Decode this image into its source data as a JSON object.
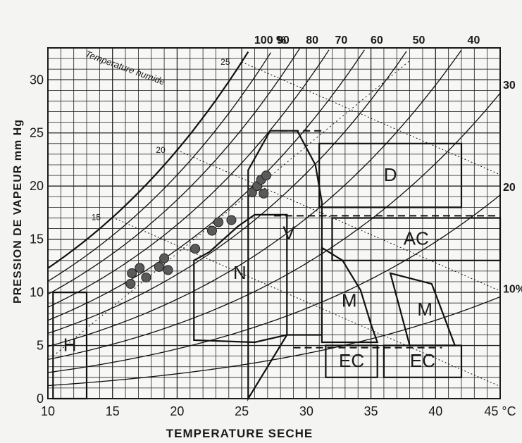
{
  "chart_data": {
    "type": "psychrometric-chart",
    "xlabel": "TEMPERATURE SECHE",
    "ylabel": "PRESSION DE VAPEUR mm Hg",
    "x_unit": "°C",
    "xlim": [
      10,
      45
    ],
    "ylim": [
      0,
      33
    ],
    "x_ticks": [
      10,
      15,
      20,
      25,
      30,
      35,
      40,
      45
    ],
    "y_ticks": [
      0,
      5,
      10,
      15,
      20,
      25,
      30
    ],
    "x_tick_labels": [
      "10",
      "15",
      "20",
      "25",
      "30",
      "35",
      "40",
      "45 °C"
    ],
    "grid": true,
    "saturation_curve_label": "100 %",
    "rh_curves": [
      {
        "rh": 100,
        "label": "100 %"
      },
      {
        "rh": 90,
        "label": "90"
      },
      {
        "rh": 80,
        "label": "80"
      },
      {
        "rh": 70,
        "label": "70"
      },
      {
        "rh": 60,
        "label": "60"
      },
      {
        "rh": 50,
        "label": "50"
      },
      {
        "rh": 40,
        "label": "40"
      },
      {
        "rh": 30,
        "label": "30"
      },
      {
        "rh": 20,
        "label": "20"
      },
      {
        "rh": 10,
        "label": "10%"
      }
    ],
    "wet_bulb": {
      "title": "Temperature humide",
      "lines": [
        15,
        20,
        25
      ],
      "labels": [
        "15",
        "20",
        "25"
      ]
    },
    "zones": [
      {
        "label": "H",
        "points": [
          [
            10.4,
            0
          ],
          [
            10.4,
            10
          ],
          [
            13,
            10
          ],
          [
            13,
            0
          ]
        ]
      },
      {
        "label": "N",
        "points": [
          [
            21.3,
            5.5
          ],
          [
            21.3,
            13
          ],
          [
            22.5,
            13.8
          ],
          [
            24.7,
            16.2
          ],
          [
            26,
            17.3
          ],
          [
            28.5,
            17.3
          ],
          [
            28.5,
            6
          ],
          [
            26,
            5.3
          ]
        ]
      },
      {
        "label": "V",
        "points": [
          [
            25.5,
            0
          ],
          [
            25.5,
            21.5
          ],
          [
            27.2,
            25.2
          ],
          [
            29.3,
            25.2
          ],
          [
            30.7,
            22
          ],
          [
            31.2,
            18.5
          ],
          [
            31.2,
            6
          ],
          [
            28.5,
            6
          ]
        ]
      },
      {
        "label": "D",
        "points": [
          [
            31,
            24
          ],
          [
            42,
            24
          ],
          [
            42,
            18
          ],
          [
            31,
            18
          ]
        ]
      },
      {
        "label": "AC",
        "points": [
          [
            32,
            17
          ],
          [
            45,
            17
          ],
          [
            45,
            13
          ],
          [
            32,
            13
          ]
        ]
      },
      {
        "label": "M",
        "points": [
          [
            31.2,
            14.2
          ],
          [
            32.8,
            13
          ],
          [
            34.2,
            10.2
          ],
          [
            35,
            7
          ],
          [
            35.5,
            5.3
          ],
          [
            31.2,
            5.3
          ]
        ]
      },
      {
        "label": "M",
        "points": [
          [
            36.5,
            11.8
          ],
          [
            39.7,
            10.8
          ],
          [
            40.2,
            9.2
          ],
          [
            41.5,
            5
          ],
          [
            38,
            5
          ]
        ]
      },
      {
        "label": "EC",
        "points": [
          [
            31.5,
            5
          ],
          [
            35.5,
            5
          ],
          [
            35.5,
            2
          ],
          [
            31.5,
            2
          ]
        ]
      },
      {
        "label": "EC",
        "points": [
          [
            36,
            5
          ],
          [
            42,
            5
          ],
          [
            42,
            2
          ],
          [
            36,
            2
          ]
        ]
      }
    ],
    "points": [
      {
        "x": 16.5,
        "y": 11.8
      },
      {
        "x": 17.1,
        "y": 12.3
      },
      {
        "x": 17.6,
        "y": 11.4
      },
      {
        "x": 18.6,
        "y": 12.4
      },
      {
        "x": 19.0,
        "y": 13.2
      },
      {
        "x": 19.3,
        "y": 12.1
      },
      {
        "x": 16.4,
        "y": 10.8
      },
      {
        "x": 21.4,
        "y": 14.1
      },
      {
        "x": 22.7,
        "y": 15.8
      },
      {
        "x": 23.2,
        "y": 16.6
      },
      {
        "x": 24.2,
        "y": 16.8
      },
      {
        "x": 25.8,
        "y": 19.4
      },
      {
        "x": 26.2,
        "y": 20.0
      },
      {
        "x": 26.5,
        "y": 20.6
      },
      {
        "x": 26.9,
        "y": 21.0
      },
      {
        "x": 26.7,
        "y": 19.3
      }
    ]
  }
}
